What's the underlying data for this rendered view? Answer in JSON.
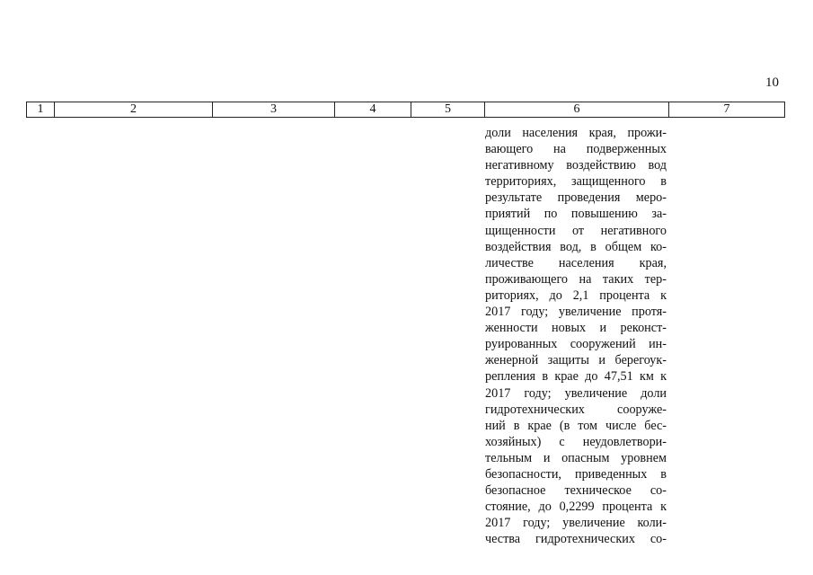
{
  "page_number": "10",
  "table_header": [
    "1",
    "2",
    "3",
    "4",
    "5",
    "6",
    "7"
  ],
  "column6_lines": [
    "доли населения края, прожи-",
    "вающего на подверженных",
    "негативному воздействию вод",
    "территориях, защищенного в",
    "результате проведения меро-",
    "приятий по повышению за-",
    "щищенности от негативного",
    "воздействия вод, в общем ко-",
    "личестве населения края,",
    "проживающего на таких тер-",
    "риториях, до 2,1 процента к",
    "2017 году; увеличение протя-",
    "женности новых и реконст-",
    "руированных сооружений ин-",
    "женерной защиты и берегоук-",
    "репления в крае до 47,51 км к",
    "2017 году; увеличение доли",
    "гидротехнических сооруже-",
    "ний в крае (в том числе бес-",
    "хозяйных) с неудовлетвори-",
    "тельным и опасным уровнем",
    "безопасности, приведенных в",
    "безопасное техническое со-",
    "стояние, до 0,2299 процента к",
    "2017 году; увеличение коли-",
    "чества гидротехнических со-"
  ]
}
